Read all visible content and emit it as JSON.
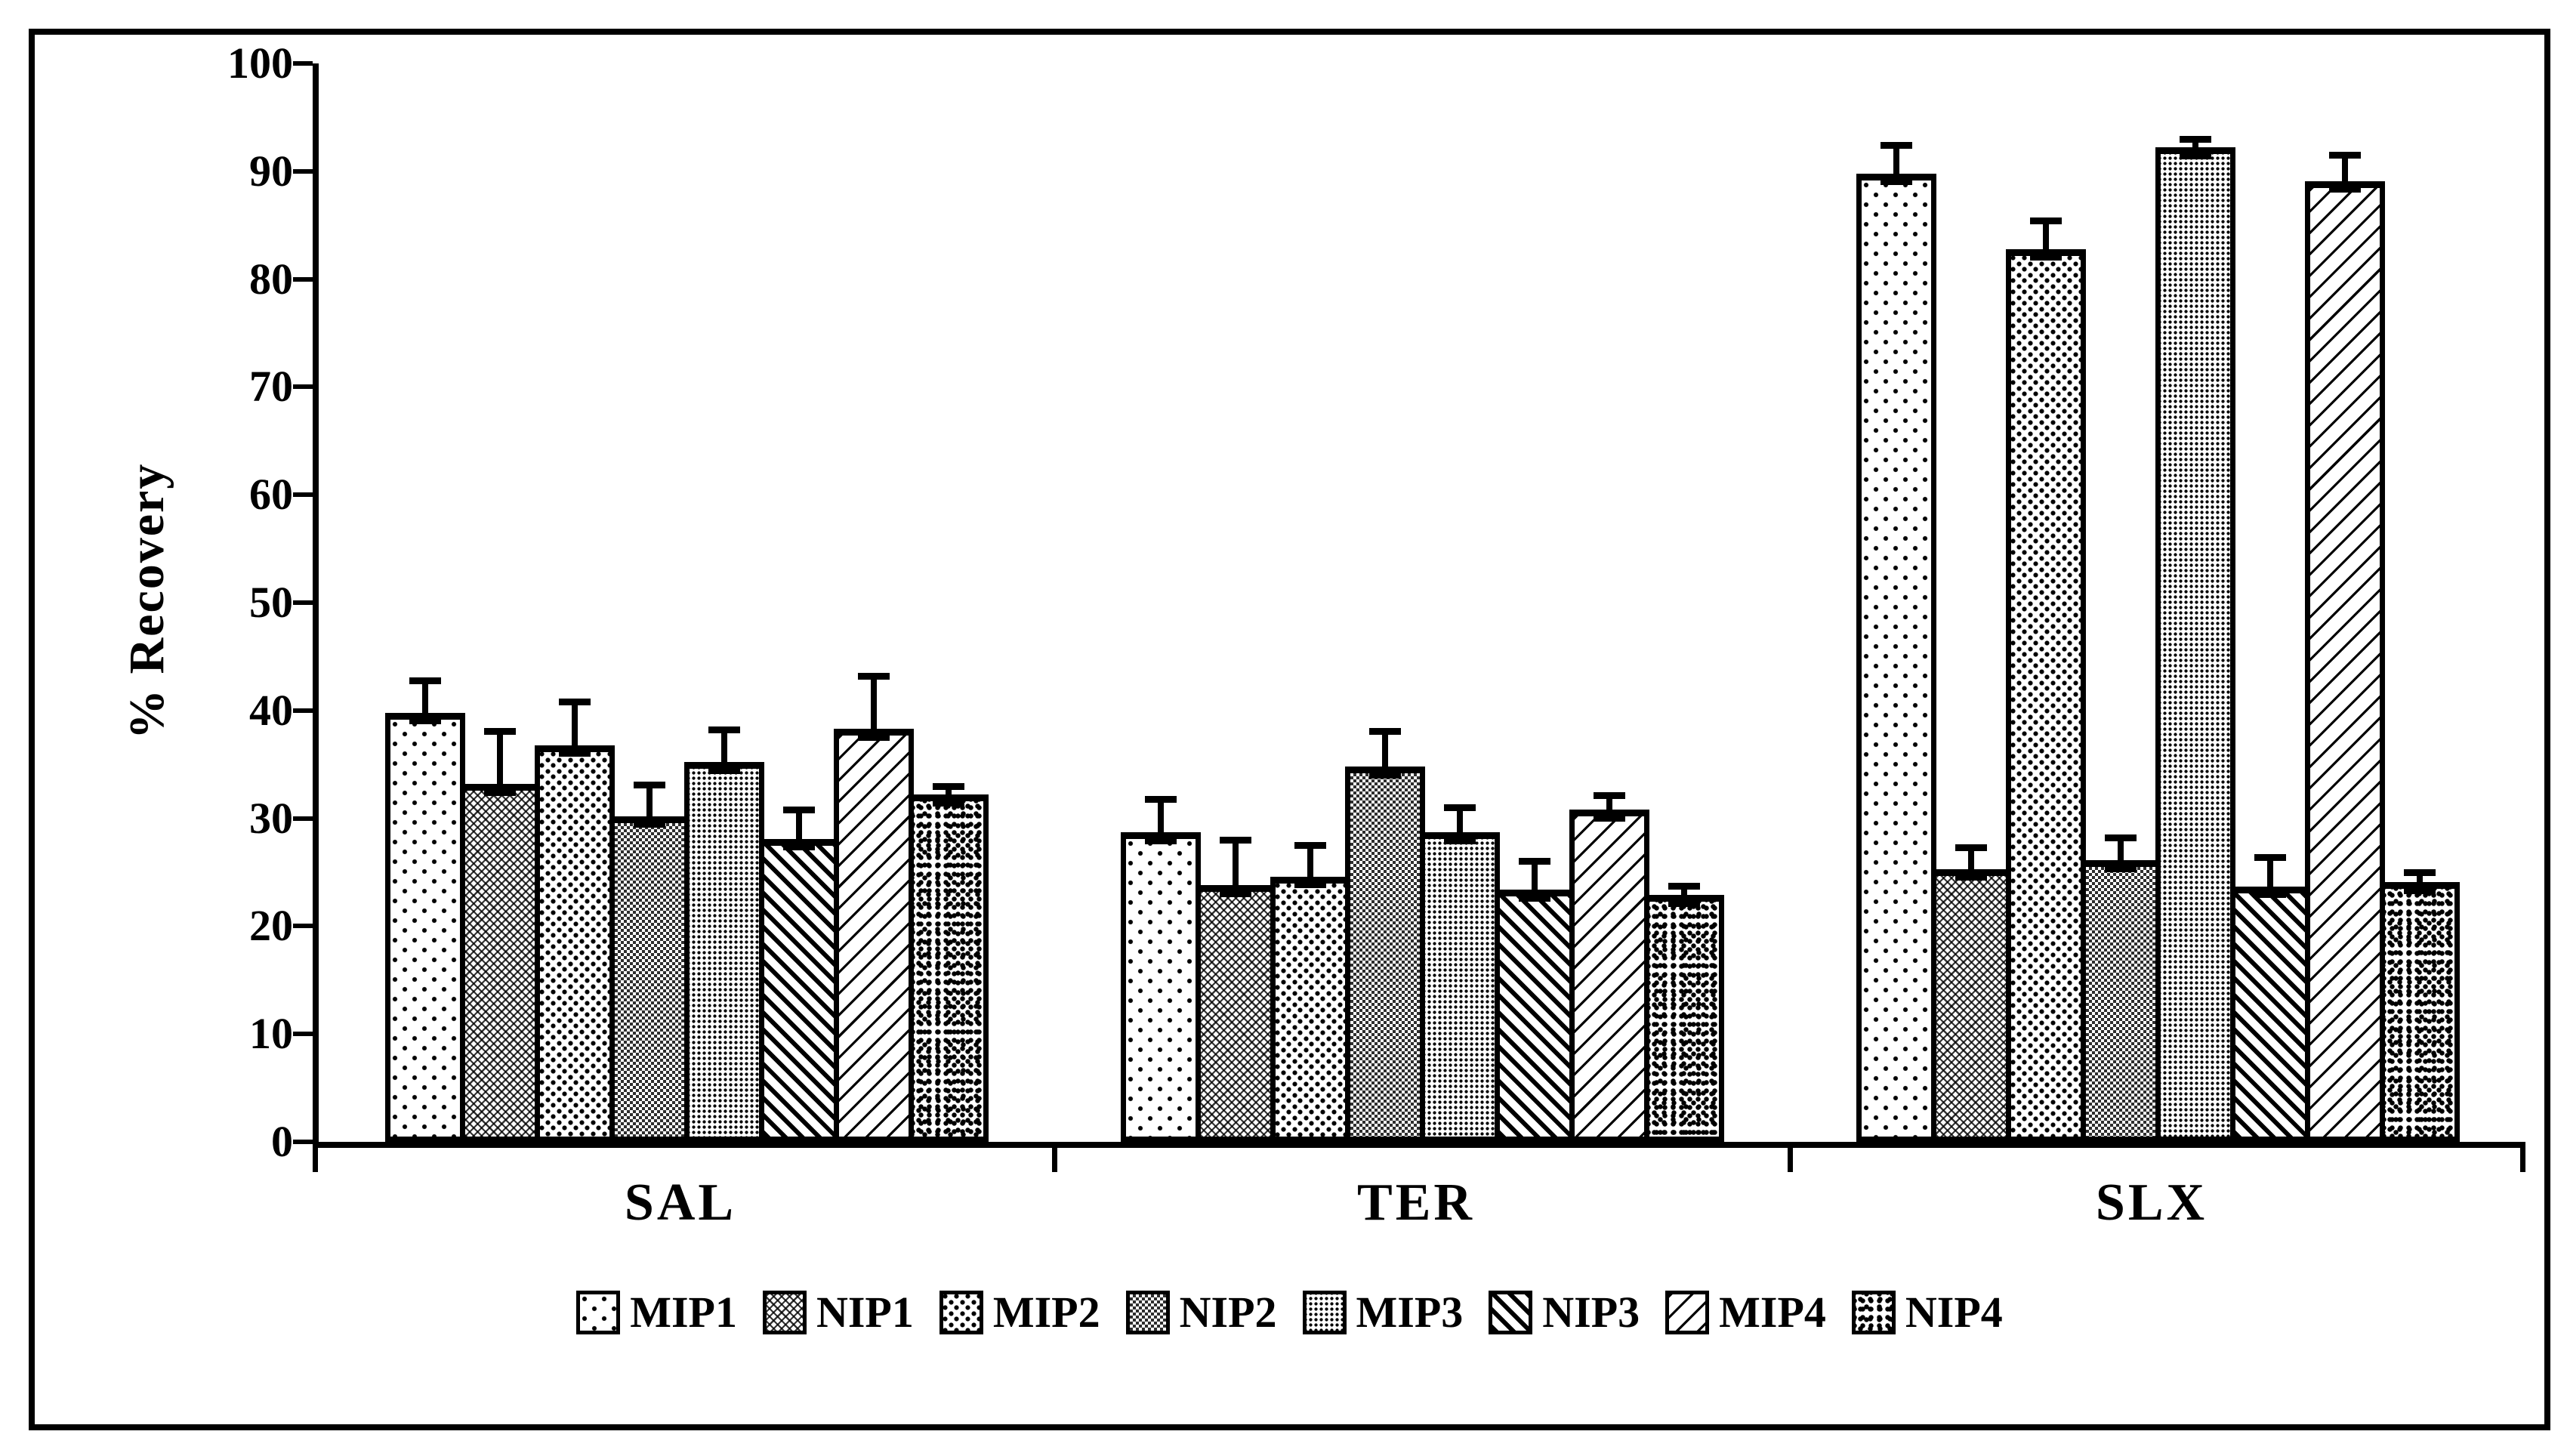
{
  "figure": {
    "background_color": "#ffffff",
    "ink_color": "#000000",
    "frame": "black rectangular border around entire figure"
  },
  "chart_data": {
    "type": "bar",
    "title": "",
    "xlabel": "",
    "ylabel": "% Recovery",
    "ylim": [
      0,
      100
    ],
    "y_ticks": [
      0,
      10,
      20,
      30,
      40,
      50,
      60,
      70,
      80,
      90,
      100
    ],
    "grid": "off",
    "legend_position": "bottom",
    "categories": [
      "SAL",
      "TER",
      "SLX"
    ],
    "error_down_units": 1.1,
    "series": [
      {
        "name": "MIP1",
        "pattern": "sparse-dots",
        "values": [
          39.8,
          28.7,
          89.8
        ],
        "errors": [
          3.3,
          3.4,
          2.9
        ]
      },
      {
        "name": "NIP1",
        "pattern": "diagonal-crosshatch",
        "values": [
          33.2,
          23.8,
          25.3
        ],
        "errors": [
          5.2,
          4.5,
          2.3
        ]
      },
      {
        "name": "MIP2",
        "pattern": "medium-dots",
        "values": [
          36.8,
          24.6,
          82.8
        ],
        "errors": [
          4.3,
          3.2,
          2.9
        ]
      },
      {
        "name": "NIP2",
        "pattern": "fine-checkerboard",
        "values": [
          30.2,
          34.8,
          26.1
        ],
        "errors": [
          3.2,
          3.6,
          2.4
        ]
      },
      {
        "name": "MIP3",
        "pattern": "fine-dot-grid",
        "values": [
          35.2,
          28.7,
          92.2
        ],
        "errors": [
          3.3,
          2.6,
          1.1
        ]
      },
      {
        "name": "NIP3",
        "pattern": "thick-backslash-stripes",
        "values": [
          28.1,
          23.4,
          23.7
        ],
        "errors": [
          3.0,
          2.9,
          3.0
        ]
      },
      {
        "name": "MIP4",
        "pattern": "thin-slash-stripes",
        "values": [
          38.3,
          30.8,
          89.1
        ],
        "errors": [
          5.2,
          1.6,
          2.7
        ]
      },
      {
        "name": "NIP4",
        "pattern": "scattered-squares",
        "values": [
          32.2,
          22.9,
          24.1
        ],
        "errors": [
          1.1,
          1.1,
          1.2
        ]
      }
    ]
  }
}
